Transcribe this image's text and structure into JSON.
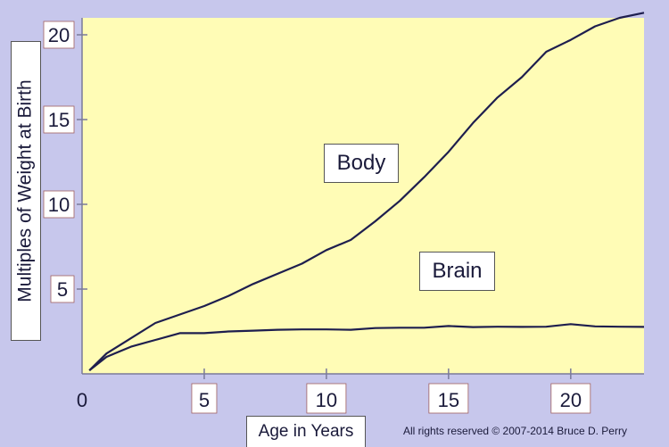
{
  "chart_data": {
    "type": "line",
    "title": "",
    "xlabel": "Age in Years",
    "ylabel": "Multiples of Weight at Birth",
    "xlim": [
      0,
      23
    ],
    "ylim": [
      0,
      21
    ],
    "grid": false,
    "legend": "none",
    "x_ticks": [
      {
        "value": 0,
        "label": "0",
        "boxed": false
      },
      {
        "value": 5,
        "label": "5",
        "boxed": true
      },
      {
        "value": 10,
        "label": "10",
        "boxed": true
      },
      {
        "value": 15,
        "label": "15",
        "boxed": true
      },
      {
        "value": 20,
        "label": "20",
        "boxed": true
      }
    ],
    "y_ticks": [
      {
        "value": 5,
        "label": "5"
      },
      {
        "value": 10,
        "label": "10"
      },
      {
        "value": 15,
        "label": "15"
      },
      {
        "value": 20,
        "label": "20"
      }
    ],
    "series": [
      {
        "name": "Body",
        "points": [
          [
            0.3,
            0.2
          ],
          [
            1,
            1.2
          ],
          [
            2,
            2.1
          ],
          [
            3,
            3.0
          ],
          [
            4,
            3.5
          ],
          [
            5,
            4.0
          ],
          [
            6,
            4.6
          ],
          [
            7,
            5.3
          ],
          [
            8,
            5.9
          ],
          [
            9,
            6.5
          ],
          [
            10,
            7.3
          ],
          [
            11,
            7.9
          ],
          [
            12,
            9.0
          ],
          [
            13,
            10.2
          ],
          [
            14,
            11.6
          ],
          [
            15,
            13.1
          ],
          [
            16,
            14.8
          ],
          [
            17,
            16.3
          ],
          [
            18,
            17.5
          ],
          [
            19,
            19.0
          ],
          [
            20,
            19.7
          ],
          [
            21,
            20.5
          ],
          [
            22,
            21.0
          ],
          [
            23,
            21.3
          ]
        ]
      },
      {
        "name": "Brain",
        "points": [
          [
            0.3,
            0.2
          ],
          [
            1,
            1.0
          ],
          [
            2,
            1.6
          ],
          [
            3,
            2.0
          ],
          [
            4,
            2.4
          ],
          [
            5,
            2.4
          ],
          [
            6,
            2.5
          ],
          [
            7,
            2.55
          ],
          [
            8,
            2.6
          ],
          [
            9,
            2.62
          ],
          [
            10,
            2.62
          ],
          [
            11,
            2.6
          ],
          [
            12,
            2.7
          ],
          [
            13,
            2.72
          ],
          [
            14,
            2.72
          ],
          [
            15,
            2.82
          ],
          [
            16,
            2.76
          ],
          [
            17,
            2.78
          ],
          [
            18,
            2.77
          ],
          [
            19,
            2.78
          ],
          [
            20,
            2.93
          ],
          [
            21,
            2.8
          ],
          [
            22,
            2.78
          ],
          [
            23,
            2.77
          ]
        ]
      }
    ],
    "colors": {
      "plot_background": "#fffcb6",
      "page_background": "#c7c7ec",
      "line": "#1e1e4e",
      "axis": "#7a7a9a"
    }
  },
  "copyright": "All rights reserved © 2007-2014 Bruce D. Perry"
}
